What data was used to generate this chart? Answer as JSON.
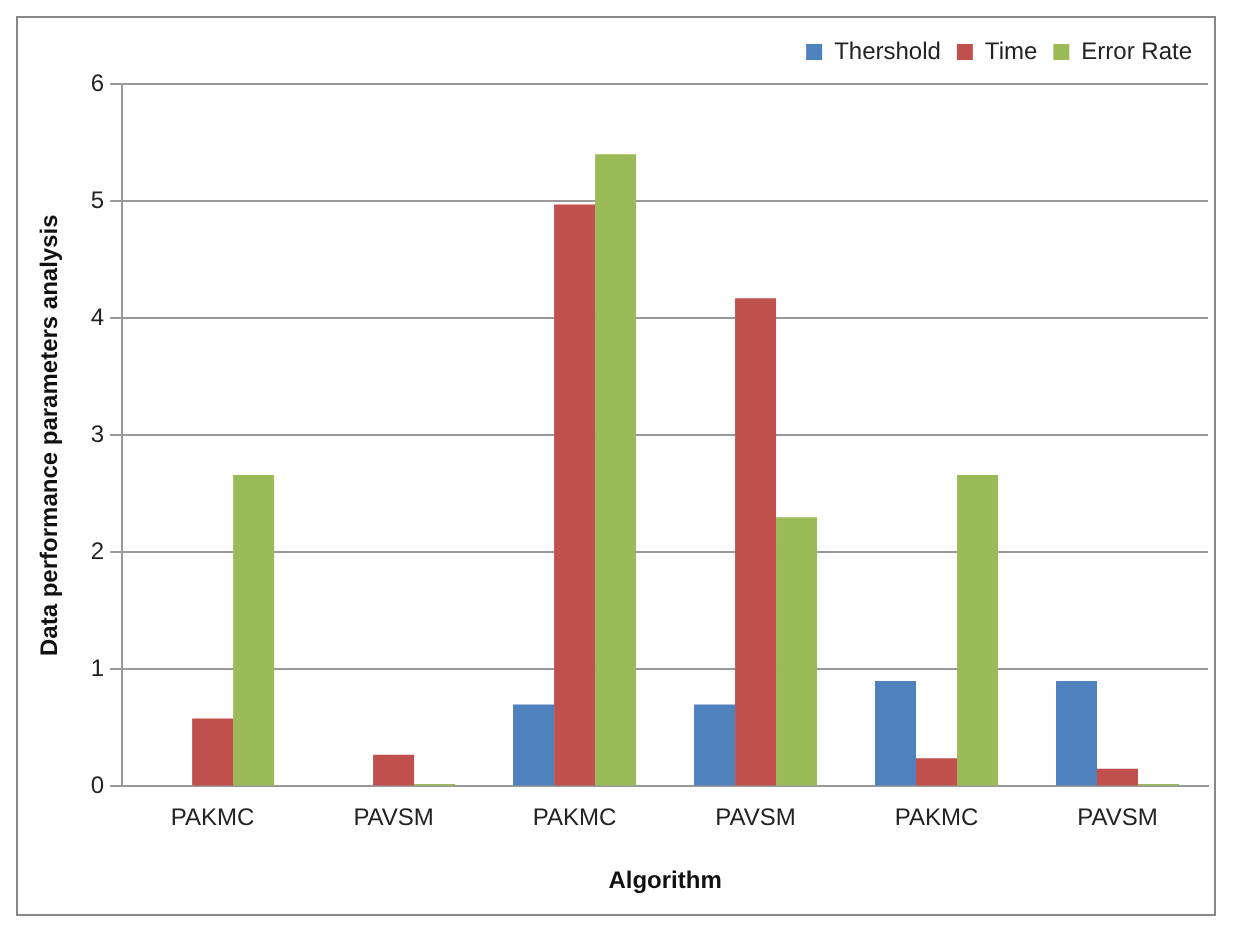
{
  "chart_data": {
    "type": "bar",
    "xlabel": "Algorithm",
    "ylabel": "Data performance parameters analysis",
    "categories": [
      "PAKMC",
      "PAVSM",
      "PAKMC",
      "PAVSM",
      "PAKMC",
      "PAVSM"
    ],
    "series": [
      {
        "name": "Thershold",
        "color": "#4f81bd",
        "values": [
          0,
          0,
          0.7,
          0.7,
          0.9,
          0.9
        ]
      },
      {
        "name": "Time",
        "color": "#c0504d",
        "values": [
          0.58,
          0.27,
          4.97,
          4.17,
          0.24,
          0.15
        ]
      },
      {
        "name": "Error Rate",
        "color": "#9bbb59",
        "values": [
          2.66,
          0.02,
          5.4,
          2.3,
          2.66,
          0.02
        ]
      }
    ],
    "ylim": [
      0,
      6
    ],
    "yticks": [
      0,
      1,
      2,
      3,
      4,
      5,
      6
    ],
    "grid": "y",
    "legend": "top right"
  }
}
